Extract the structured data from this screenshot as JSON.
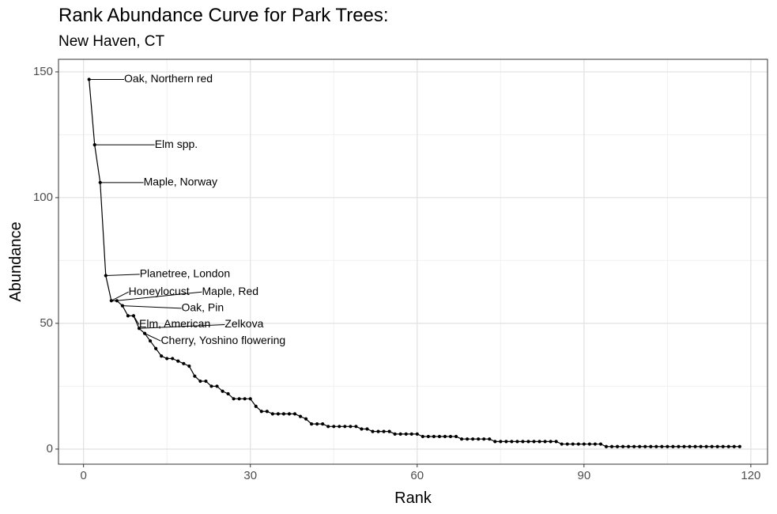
{
  "chart_data": {
    "type": "line",
    "title": "Rank Abundance Curve for Park Trees:",
    "subtitle": "New Haven, CT",
    "xlabel": "Rank",
    "ylabel": "Abundance",
    "xlim": [
      -4.5,
      123
    ],
    "ylim": [
      -6,
      155
    ],
    "xticks": [
      0,
      30,
      60,
      90,
      120
    ],
    "yticks": [
      0,
      50,
      100,
      150
    ],
    "grid": true,
    "series": [
      {
        "x": [
          1,
          2,
          3,
          4,
          5,
          6,
          7,
          8,
          9,
          10,
          11,
          12,
          13,
          14,
          15,
          16,
          17,
          18,
          19,
          20,
          21,
          22,
          23,
          24,
          25,
          26,
          27,
          28,
          29,
          30,
          31,
          32,
          33,
          34,
          35,
          36,
          37,
          38,
          39,
          40,
          41,
          42,
          43,
          44,
          45,
          46,
          47,
          48,
          49,
          50,
          51,
          52,
          53,
          54,
          55,
          56,
          57,
          58,
          59,
          60,
          61,
          62,
          63,
          64,
          65,
          66,
          67,
          68,
          69,
          70,
          71,
          72,
          73,
          74,
          75,
          76,
          77,
          78,
          79,
          80,
          81,
          82,
          83,
          84,
          85,
          86,
          87,
          88,
          89,
          90,
          91,
          92,
          93,
          94,
          95,
          96,
          97,
          98,
          99,
          100,
          101,
          102,
          103,
          104,
          105,
          106,
          107,
          108,
          109,
          110,
          111,
          112,
          113,
          114,
          115,
          116,
          117,
          118
        ],
        "y": [
          147,
          121,
          106,
          69,
          59,
          59,
          57,
          53,
          53,
          48,
          46,
          43,
          40,
          37,
          36,
          36,
          35,
          34,
          33,
          29,
          27,
          27,
          25,
          25,
          23,
          22,
          20,
          20,
          20,
          20,
          17,
          15,
          15,
          14,
          14,
          14,
          14,
          14,
          13,
          12,
          10,
          10,
          10,
          9,
          9,
          9,
          9,
          9,
          9,
          8,
          8,
          7,
          7,
          7,
          7,
          6,
          6,
          6,
          6,
          6,
          5,
          5,
          5,
          5,
          5,
          5,
          5,
          4,
          4,
          4,
          4,
          4,
          4,
          3,
          3,
          3,
          3,
          3,
          3,
          3,
          3,
          3,
          3,
          3,
          3,
          2,
          2,
          2,
          2,
          2,
          2,
          2,
          2,
          1,
          1,
          1,
          1,
          1,
          1,
          1,
          1,
          1,
          1,
          1,
          1,
          1,
          1,
          1,
          1,
          1,
          1,
          1,
          1,
          1,
          1,
          1,
          1,
          1
        ]
      }
    ],
    "annotations": [
      {
        "label": "Oak, Northern red",
        "x": 1,
        "y": 147,
        "label_x": 7.3,
        "label_y": 147
      },
      {
        "label": "Elm spp.",
        "x": 2,
        "y": 121,
        "label_x": 12.8,
        "label_y": 121
      },
      {
        "label": "Maple, Norway",
        "x": 3,
        "y": 106,
        "label_x": 10.8,
        "label_y": 106
      },
      {
        "label": "Planetree, London",
        "x": 4,
        "y": 69,
        "label_x": 10.1,
        "label_y": 69.5
      },
      {
        "label": "Honeylocust",
        "x": 5,
        "y": 59,
        "label_x": 8.1,
        "label_y": 62.5
      },
      {
        "label": "Maple, Red",
        "x": 6,
        "y": 59,
        "label_x": 21.3,
        "label_y": 62.5
      },
      {
        "label": "Oak, Pin",
        "x": 7,
        "y": 57,
        "label_x": 17.6,
        "label_y": 56
      },
      {
        "label": "Elm, American",
        "x": 9,
        "y": 53,
        "label_x": 10,
        "label_y": 49.5
      },
      {
        "label": "Zelkova",
        "x": 10,
        "y": 48,
        "label_x": 25.4,
        "label_y": 49.5
      },
      {
        "label": "Cherry, Yoshino flowering",
        "x": 11,
        "y": 46,
        "label_x": 13.9,
        "label_y": 43
      }
    ]
  }
}
